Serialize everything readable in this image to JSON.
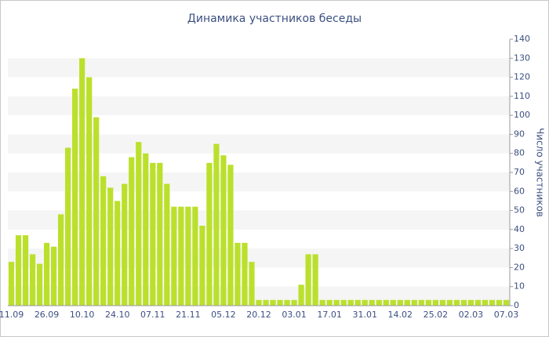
{
  "chart_data": {
    "type": "bar",
    "title": "Динамика участников беседы",
    "y_axis_label": "Число участников",
    "categories": [
      "11.09",
      null,
      null,
      null,
      null,
      "26.09",
      null,
      null,
      null,
      null,
      "10.10",
      null,
      null,
      null,
      null,
      "24.10",
      null,
      null,
      null,
      null,
      "07.11",
      null,
      null,
      null,
      null,
      "21.11",
      null,
      null,
      null,
      null,
      "05.12",
      null,
      null,
      null,
      null,
      "20.12",
      null,
      null,
      null,
      null,
      "03.01",
      null,
      null,
      null,
      null,
      "17.01",
      null,
      null,
      null,
      null,
      "31.01",
      null,
      null,
      null,
      null,
      "14.02",
      null,
      null,
      null,
      null,
      "25.02",
      null,
      null,
      null,
      null,
      "02.03",
      null,
      null,
      null,
      null,
      "07.03"
    ],
    "values": [
      23,
      37,
      37,
      27,
      22,
      33,
      31,
      48,
      83,
      114,
      130,
      120,
      99,
      68,
      62,
      55,
      64,
      78,
      86,
      80,
      75,
      75,
      64,
      52,
      52,
      52,
      52,
      42,
      75,
      85,
      79,
      74,
      33,
      33,
      23,
      3,
      3,
      3,
      3,
      3,
      3,
      11,
      27,
      27,
      3,
      3,
      3,
      3,
      3,
      3,
      3,
      3,
      3,
      3,
      3,
      3,
      3,
      3,
      3,
      3,
      3,
      3,
      3,
      3,
      3,
      3,
      3,
      3,
      3,
      3,
      3
    ],
    "color": "#bbe02c",
    "ylim": [
      0,
      140
    ],
    "yticks": [
      0,
      10,
      20,
      30,
      40,
      50,
      60,
      70,
      80,
      90,
      100,
      110,
      120,
      130,
      140
    ],
    "grid": true
  }
}
